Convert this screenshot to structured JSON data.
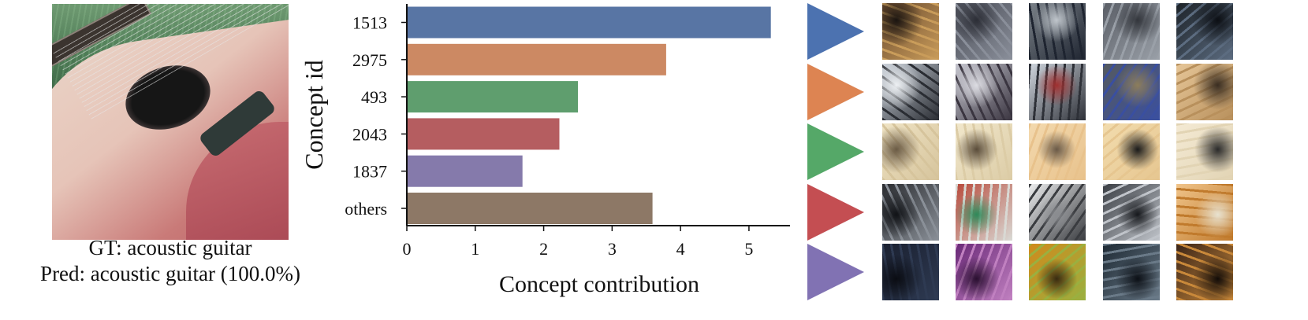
{
  "caption": {
    "ground_truth": "GT: acoustic guitar",
    "prediction": "Pred: acoustic guitar (100.0%)"
  },
  "chart_data": {
    "type": "bar",
    "orientation": "horizontal",
    "categories": [
      "1513",
      "2975",
      "493",
      "2043",
      "1837",
      "others"
    ],
    "values": [
      5.32,
      3.79,
      2.5,
      2.23,
      1.69,
      3.59
    ],
    "colors": [
      "#5875a4",
      "#cc8963",
      "#5f9e6e",
      "#b55d60",
      "#857aab",
      "#8d7866"
    ],
    "xlabel": "Concept contribution",
    "ylabel": "Concept id",
    "xlim": [
      0,
      5.6
    ],
    "xticks": [
      0,
      1,
      2,
      3,
      4,
      5
    ],
    "grid": false,
    "legend": "none"
  },
  "concept_rows": [
    {
      "color": "#4c72b0",
      "tiles": [
        [
          "#6a4a2e",
          "#c99c5a",
          "#1a1410"
        ],
        [
          "#4a4d57",
          "#8a8f9a",
          "#2c2e36"
        ],
        [
          "#7a8188",
          "#1e2430",
          "#c0c6cc"
        ],
        [
          "#5a5e66",
          "#9aa0a8",
          "#33363c"
        ],
        [
          "#1c2228",
          "#5c6c80",
          "#0c0f14"
        ]
      ]
    },
    {
      "color": "#dd8452",
      "tiles": [
        [
          "#c8cfd8",
          "#2a2d33",
          "#eef1f4"
        ],
        [
          "#c6c6cf",
          "#3a3540",
          "#dcdce2"
        ],
        [
          "#d0d6de",
          "#2e3138",
          "#a03030"
        ],
        [
          "#555a5e",
          "#3a4fa0",
          "#8c7d5c"
        ],
        [
          "#e6c698",
          "#b8905c",
          "#3a2e22"
        ]
      ]
    },
    {
      "color": "#55a868",
      "tiles": [
        [
          "#efe3c4",
          "#d6c49c",
          "#6a5a44"
        ],
        [
          "#f1e7cb",
          "#dccca6",
          "#5a4c3a"
        ],
        [
          "#f3d9ae",
          "#e8c28c",
          "#6a5a48"
        ],
        [
          "#f2dcae",
          "#e6c690",
          "#1a1a1a"
        ],
        [
          "#f4ead4",
          "#e2d4b4",
          "#2a2a2a"
        ]
      ]
    },
    {
      "color": "#c44e52",
      "tiles": [
        [
          "#2a2c30",
          "#8a9098",
          "#101216"
        ],
        [
          "#b84a3c",
          "#d9d9d4",
          "#2e8a5a"
        ],
        [
          "#ecedee",
          "#3a3c40",
          "#8a8c90"
        ],
        [
          "#3a3e44",
          "#c0c4ca",
          "#16181c"
        ],
        [
          "#f0c48a",
          "#c07a2c",
          "#e8e2d0"
        ]
      ]
    },
    {
      "color": "#8172b3",
      "tiles": [
        [
          "#1a2030",
          "#2e3a52",
          "#0a0c12"
        ],
        [
          "#6a2a78",
          "#c080c0",
          "#2a1030"
        ],
        [
          "#d08a1c",
          "#9ab040",
          "#3a2a10"
        ],
        [
          "#1e2a34",
          "#6a7a88",
          "#0c1016"
        ],
        [
          "#3a2418",
          "#c8883a",
          "#120c08"
        ]
      ]
    }
  ]
}
